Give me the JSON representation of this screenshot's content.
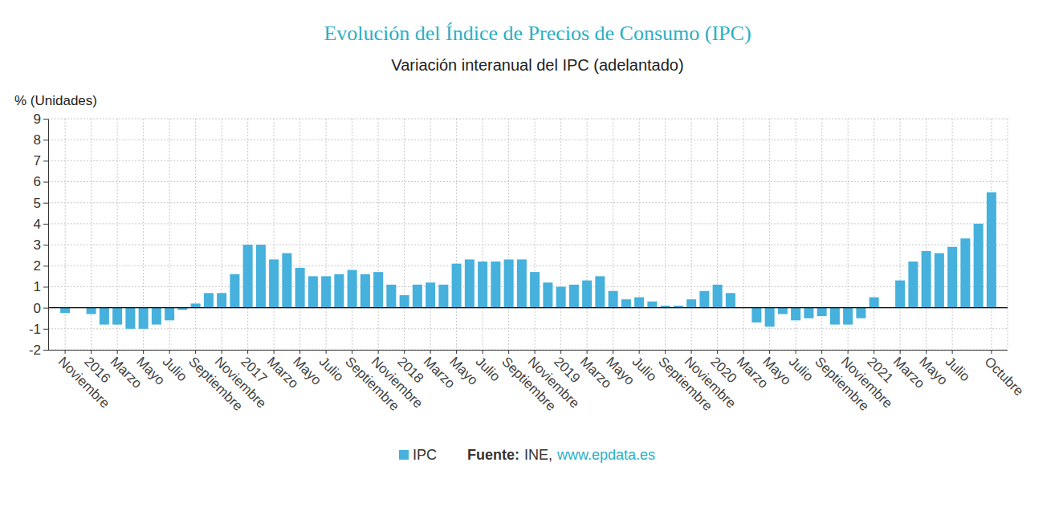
{
  "chart_data": {
    "type": "bar",
    "title": "Evolución del Índice de Precios de Consumo (IPC)",
    "subtitle": "Variación interanual del IPC (adelantado)",
    "y_label": "% (Unidades)",
    "source": [
      "Fuente:",
      "INE,",
      "www.epdata.es"
    ],
    "categories": [
      "Noviembre",
      null,
      "2016",
      null,
      "Marzo",
      null,
      "Mayo",
      null,
      "Julio",
      null,
      "Septiembre",
      null,
      "Noviembre",
      null,
      "2017",
      null,
      "Marzo",
      null,
      "Mayo",
      null,
      "Julio",
      null,
      "Septiembre",
      null,
      "Noviembre",
      null,
      "2018",
      null,
      "Marzo",
      null,
      "Mayo",
      null,
      "Julio",
      null,
      "Septiembre",
      null,
      "Noviembre",
      null,
      "2019",
      null,
      "Marzo",
      null,
      "Mayo",
      null,
      "Julio",
      null,
      "Septiembre",
      null,
      "Noviembre",
      null,
      "2020",
      null,
      "Marzo",
      null,
      "Mayo",
      null,
      "Julio",
      null,
      "Septiembre",
      null,
      "Noviembre",
      null,
      "2021",
      null,
      "Marzo",
      null,
      "Mayo",
      null,
      "Julio",
      null,
      null,
      "Octubre"
    ],
    "series": [
      {
        "name": "IPC",
        "color": "#45b1dc",
        "values": [
          -0.25,
          null,
          -0.3,
          -0.8,
          -0.8,
          -1.0,
          -1.0,
          -0.8,
          -0.6,
          -0.1,
          0.2,
          0.7,
          0.7,
          1.6,
          3.0,
          3.0,
          2.3,
          2.6,
          1.9,
          1.5,
          1.5,
          1.6,
          1.8,
          1.6,
          1.7,
          1.1,
          0.6,
          1.1,
          1.2,
          1.1,
          2.1,
          2.3,
          2.2,
          2.2,
          2.3,
          2.3,
          1.7,
          1.2,
          1.0,
          1.1,
          1.3,
          1.5,
          0.8,
          0.4,
          0.5,
          0.3,
          0.1,
          0.1,
          0.4,
          0.8,
          1.1,
          0.7,
          null,
          -0.7,
          -0.9,
          -0.3,
          -0.6,
          -0.5,
          -0.4,
          -0.8,
          -0.8,
          -0.5,
          0.5,
          null,
          1.3,
          2.2,
          2.7,
          2.6,
          2.9,
          3.3,
          4.0,
          5.5
        ]
      }
    ],
    "ylim": [
      -2,
      9
    ],
    "yticks": [
      -2,
      -1,
      0,
      1,
      2,
      3,
      4,
      5,
      6,
      7,
      8,
      9
    ],
    "grid": true,
    "legend": "bottom"
  }
}
